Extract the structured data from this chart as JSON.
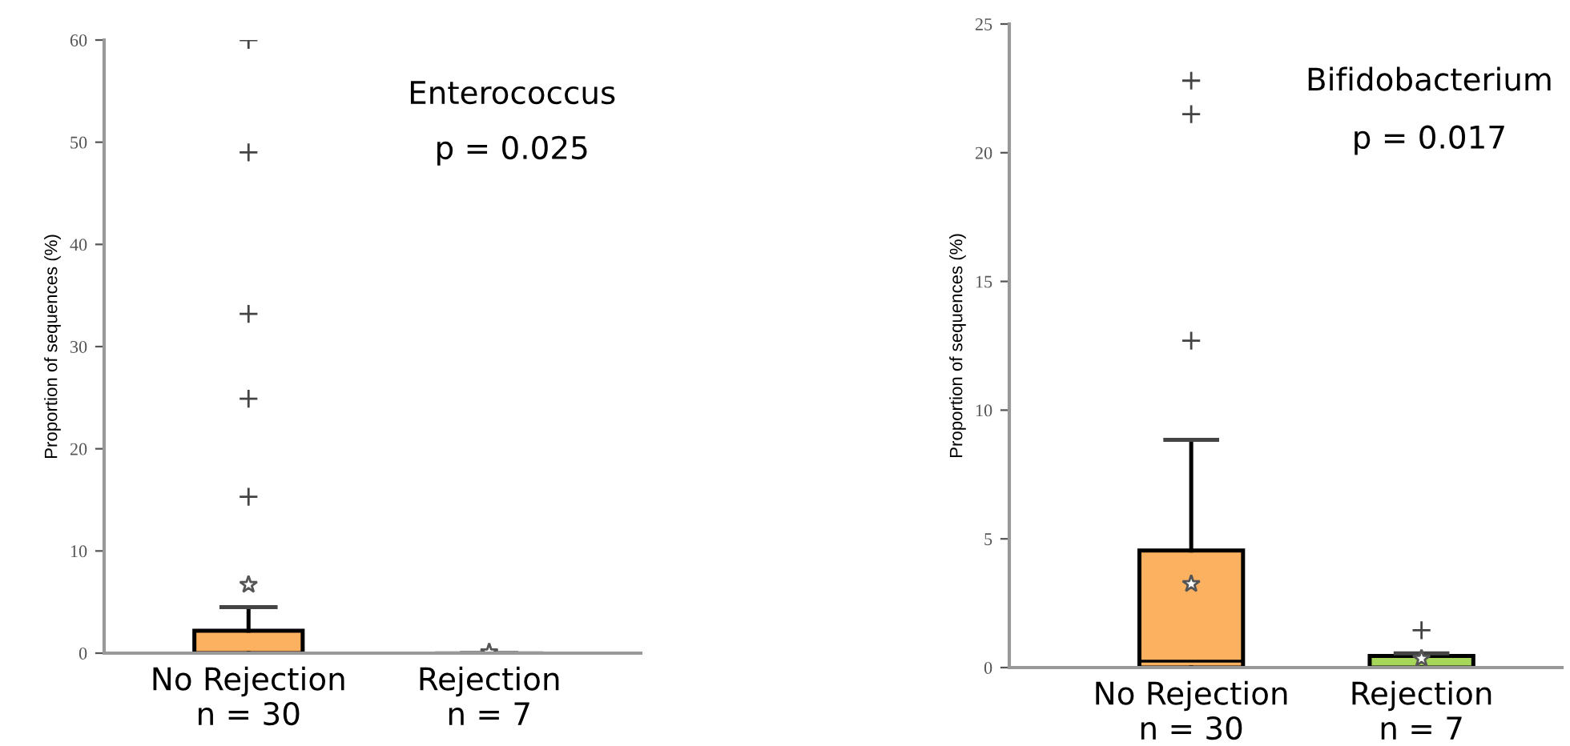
{
  "chart_data": [
    {
      "type": "box",
      "ylabel": "Proportion of sequences (%)",
      "annotations": [
        "Enterococcus",
        "p = 0.025"
      ],
      "categories": [
        "No Rejection\nn = 30",
        "Rejection\nn = 7"
      ],
      "colors": [
        "#fbb160",
        "#b0b0b0"
      ],
      "ylim": [
        0,
        60
      ],
      "yticks": [
        0,
        10,
        20,
        30,
        40,
        50,
        60
      ],
      "grid": false,
      "boxes": [
        {
          "low": 0,
          "q1": 0,
          "median": 0,
          "q3": 2.2,
          "high": 4.5,
          "mean": 6.7,
          "outliers": [
            15.3,
            24.9,
            33.2,
            49,
            60
          ]
        },
        {
          "low": 0,
          "q1": 0,
          "median": 0,
          "q3": 0,
          "high": 0,
          "mean": 0.1
        }
      ]
    },
    {
      "type": "box",
      "ylabel": "Proportion of sequences (%)",
      "annotations": [
        "Bifidobacterium",
        "p = 0.017"
      ],
      "categories": [
        "No Rejection\nn = 30",
        "Rejection\nn = 7"
      ],
      "colors": [
        "#fbb160",
        "#a6d65a"
      ],
      "ylim": [
        0,
        25
      ],
      "yticks": [
        0,
        5,
        10,
        15,
        20,
        25
      ],
      "grid": false,
      "boxes": [
        {
          "low": 0,
          "q1": 0,
          "median": 0.25,
          "q3": 4.55,
          "high": 8.85,
          "mean": 3.25,
          "outliers": [
            12.7,
            21.5,
            22.8
          ]
        },
        {
          "low": 0,
          "q1": 0,
          "median": 0,
          "q3": 0.45,
          "high": 0.55,
          "mean": 0.35,
          "outliers": [
            1.45
          ]
        }
      ]
    }
  ]
}
